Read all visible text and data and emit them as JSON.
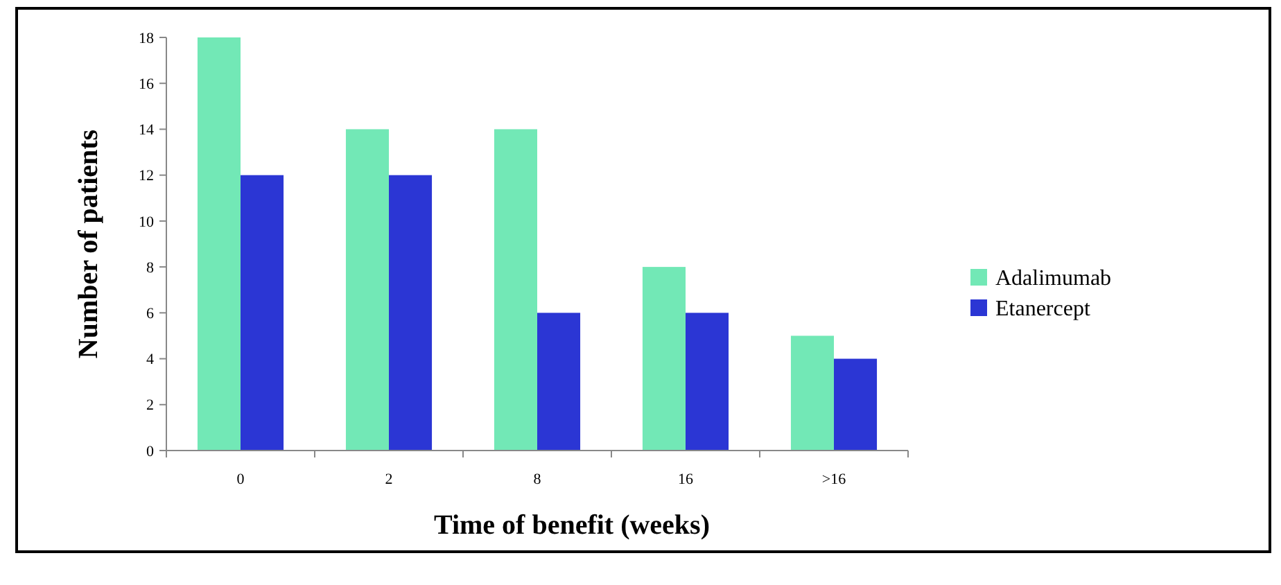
{
  "chart_data": {
    "type": "bar",
    "xlabel": "Time of benefit (weeks)",
    "ylabel": "Number of patients",
    "categories": [
      "0",
      "2",
      "8",
      "16",
      ">16"
    ],
    "series": [
      {
        "name": "Adalimumab",
        "color": "#72e8b6",
        "values": [
          18,
          14,
          14,
          8,
          5
        ]
      },
      {
        "name": "Etanercept",
        "color": "#2b36d4",
        "values": [
          12,
          12,
          6,
          6,
          4
        ]
      }
    ],
    "ylim": [
      0,
      18
    ],
    "yticks": [
      0,
      2,
      4,
      6,
      8,
      10,
      12,
      14,
      16,
      18
    ],
    "grid": false,
    "legend": "right"
  }
}
